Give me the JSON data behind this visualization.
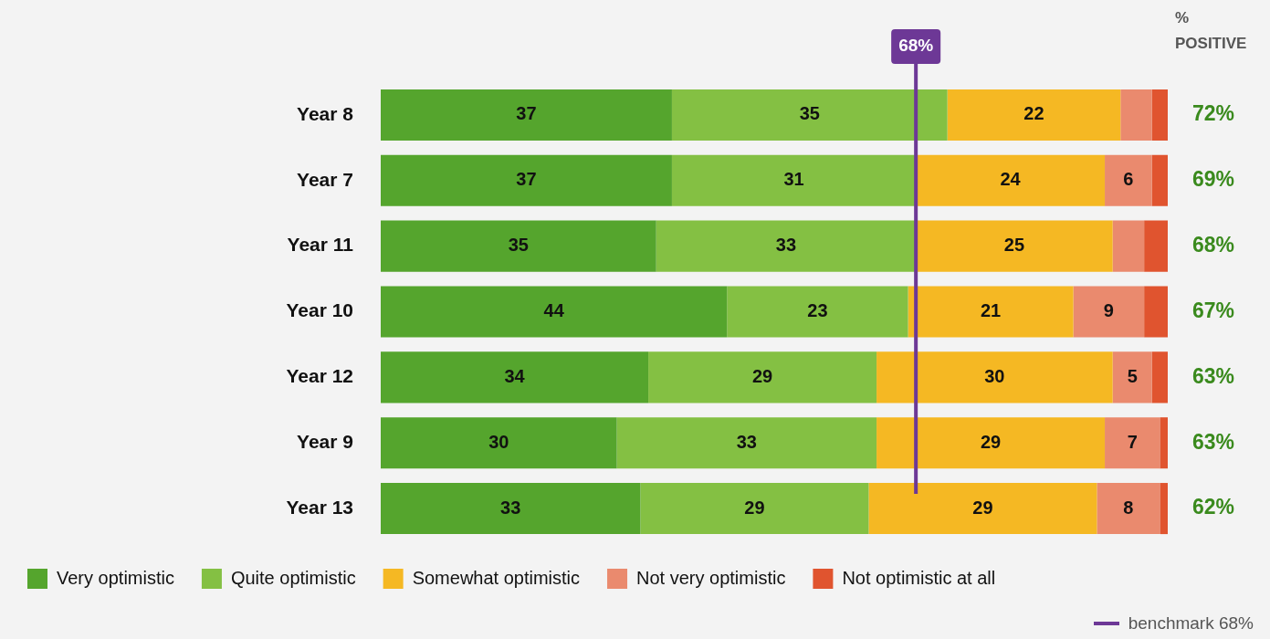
{
  "chart_data": {
    "type": "bar",
    "orientation": "horizontal",
    "stacked": true,
    "categories": [
      "Year 8",
      "Year 7",
      "Year 11",
      "Year 10",
      "Year 12",
      "Year 9",
      "Year 13"
    ],
    "series": [
      {
        "name": "Very optimistic",
        "color": "#55a52d",
        "values": [
          37,
          37,
          35,
          44,
          34,
          30,
          33
        ],
        "value_labels": [
          "37",
          "37",
          "35",
          "44",
          "34",
          "30",
          "33"
        ]
      },
      {
        "name": "Quite optimistic",
        "color": "#84c043",
        "values": [
          35,
          31,
          33,
          23,
          29,
          33,
          29
        ],
        "value_labels": [
          "35",
          "31",
          "33",
          "23",
          "29",
          "33",
          "29"
        ]
      },
      {
        "name": "Somewhat optimistic",
        "color": "#f5b823",
        "values": [
          22,
          24,
          25,
          21,
          30,
          29,
          29
        ],
        "value_labels": [
          "22",
          "24",
          "25",
          "21",
          "30",
          "29",
          "29"
        ]
      },
      {
        "name": "Not very optimistic",
        "color": "#ea8a6e",
        "values": [
          4,
          6,
          4,
          9,
          5,
          7,
          8
        ],
        "value_labels": [
          null,
          "6",
          null,
          "9",
          "5",
          "7",
          "8"
        ]
      },
      {
        "name": "Not optimistic at all",
        "color": "#e0542f",
        "values": [
          2,
          2,
          3,
          3,
          2,
          1,
          1
        ],
        "value_labels": [
          null,
          null,
          null,
          null,
          null,
          null,
          null
        ]
      }
    ],
    "xlim": [
      0,
      100
    ],
    "tick_labels": "y",
    "grid": false,
    "legend": "bottom",
    "ref_lines": [
      {
        "axis": "x",
        "value": 68,
        "label": "68%",
        "color": "#6d3896"
      }
    ],
    "annotations": [
      "% POSITIVE",
      "benchmark 68%",
      "72%",
      "69%",
      "68%",
      "67%",
      "63%",
      "63%",
      "62%"
    ]
  }
}
